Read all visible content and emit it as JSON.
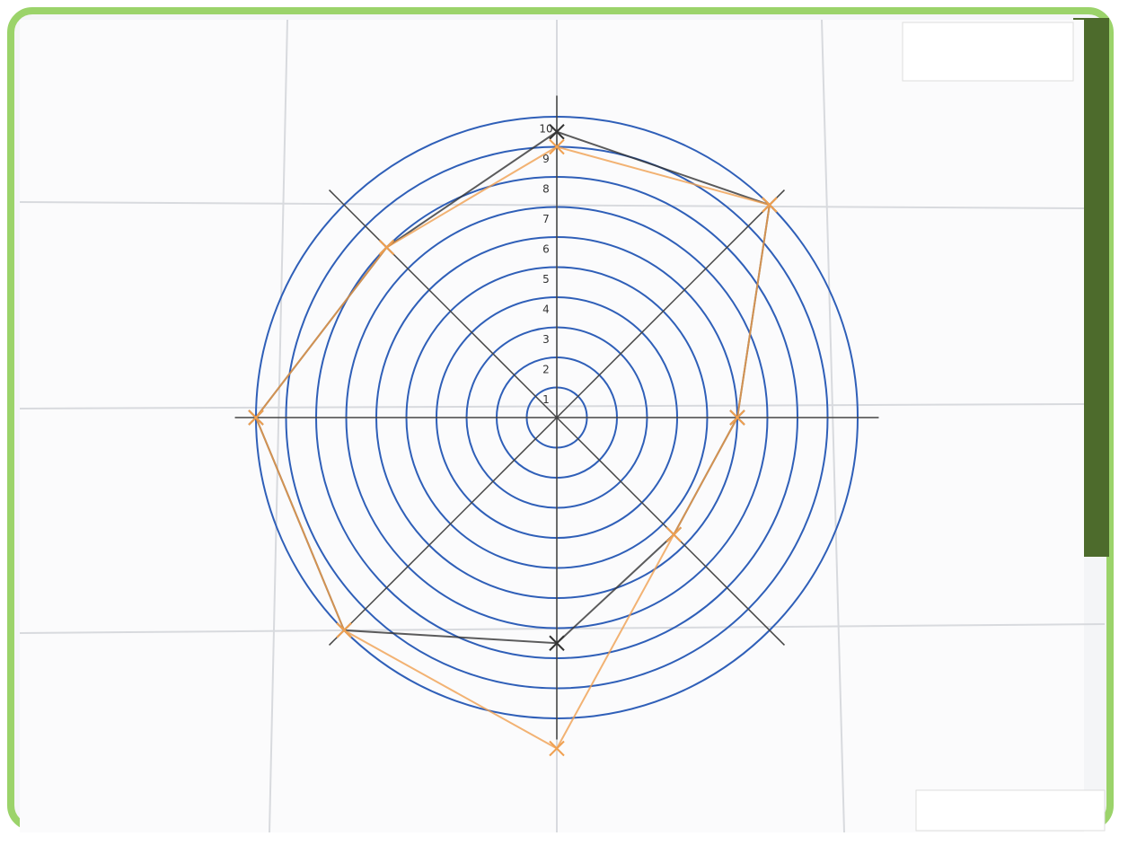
{
  "chart_data": {
    "type": "radar",
    "axes_count": 8,
    "ylim": [
      0,
      10
    ],
    "yticks": [
      1,
      2,
      3,
      4,
      5,
      6,
      7,
      8,
      9,
      10
    ],
    "ring_color": "#2f5fb8",
    "series": [
      {
        "color": "#333333",
        "values": [
          9.5,
          10,
          6,
          5.5,
          7.5,
          10,
          10,
          8
        ]
      },
      {
        "color": "#f0a050",
        "values": [
          9,
          10,
          6,
          5.5,
          11,
          10,
          10,
          8
        ]
      }
    ]
  }
}
